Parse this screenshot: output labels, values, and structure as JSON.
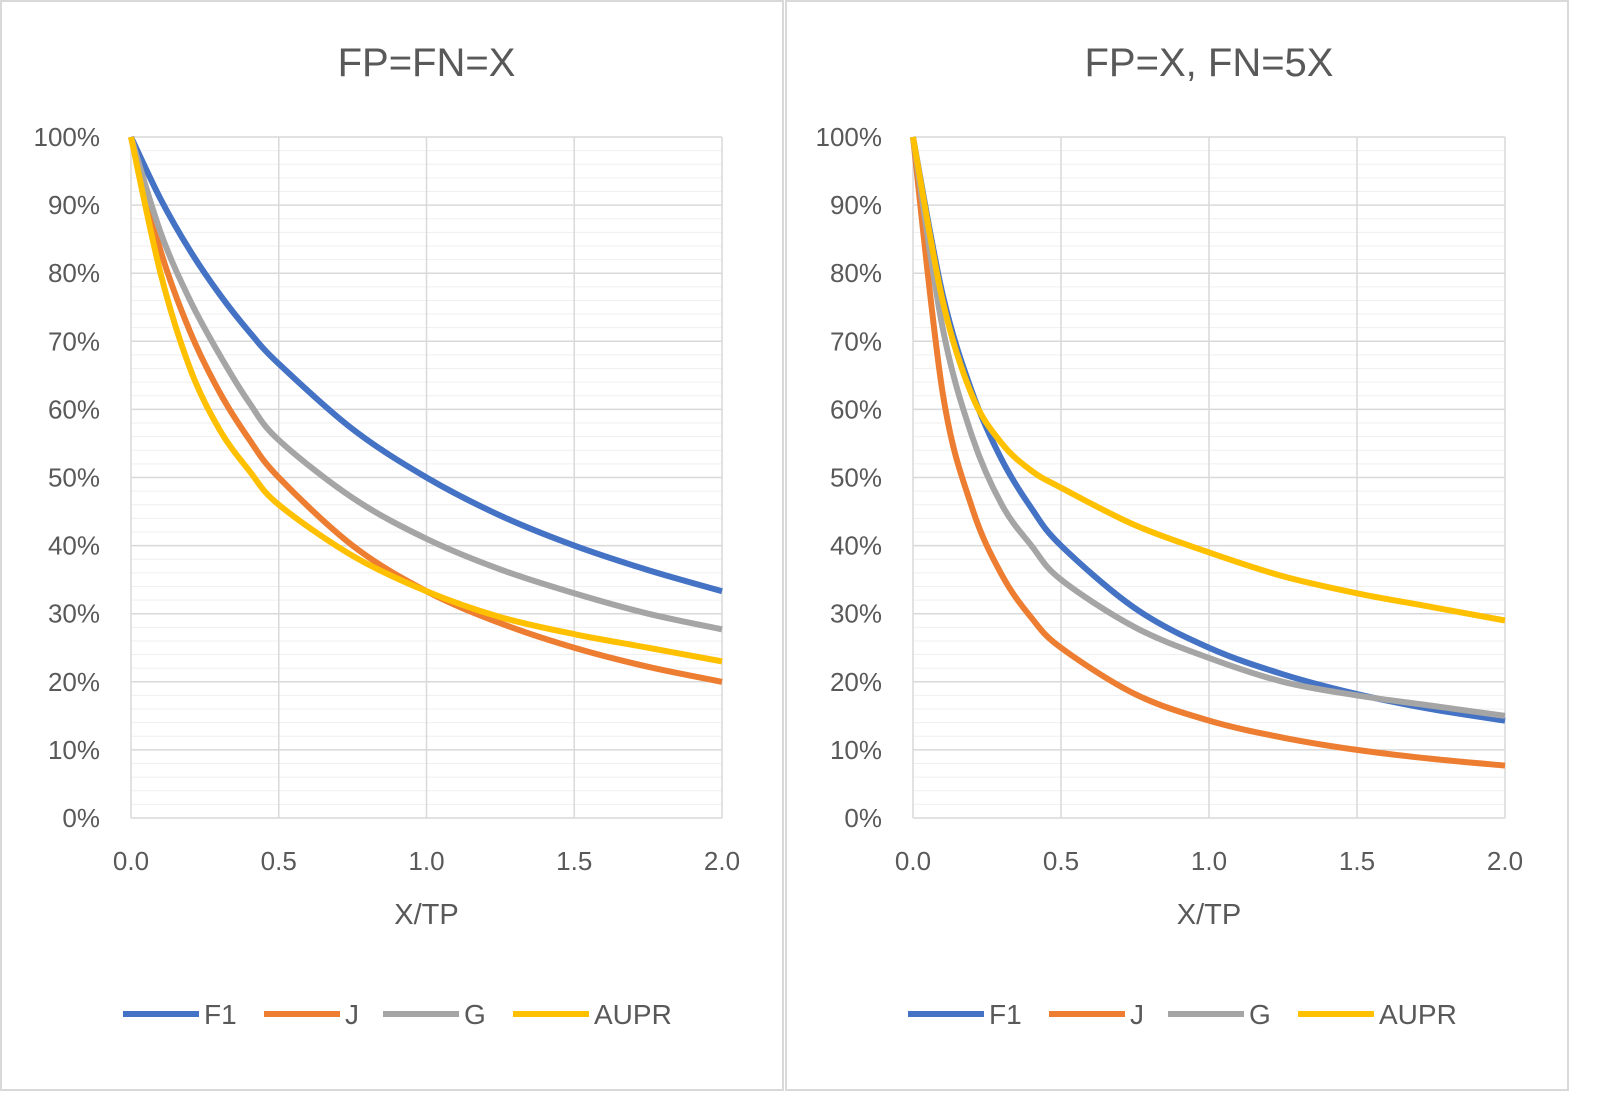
{
  "chart_data": [
    {
      "type": "line",
      "title": "FP=FN=X",
      "xlabel": "X/TP",
      "ylabel": "",
      "xlim": [
        0,
        2
      ],
      "ylim": [
        0,
        1
      ],
      "x_ticks": [
        "0.0",
        "0.5",
        "1.0",
        "1.5",
        "2.0"
      ],
      "y_ticks": [
        "0%",
        "10%",
        "20%",
        "30%",
        "40%",
        "50%",
        "60%",
        "70%",
        "80%",
        "90%",
        "100%"
      ],
      "grid": true,
      "legend": "bottom",
      "x": [
        0,
        0.1,
        0.2,
        0.3,
        0.4,
        0.5,
        0.75,
        1,
        1.25,
        1.5,
        1.75,
        2
      ],
      "series": [
        {
          "name": "F1",
          "color": "#4472C4",
          "values": [
            1,
            0.909,
            0.833,
            0.769,
            0.714,
            0.667,
            0.571,
            0.5,
            0.444,
            0.4,
            0.364,
            0.333
          ]
        },
        {
          "name": "J",
          "color": "#ED7D31",
          "values": [
            1,
            0.833,
            0.714,
            0.625,
            0.556,
            0.5,
            0.4,
            0.333,
            0.286,
            0.25,
            0.222,
            0.2
          ]
        },
        {
          "name": "G",
          "color": "#A5A5A5",
          "values": [
            1,
            0.86,
            0.76,
            0.68,
            0.61,
            0.555,
            0.47,
            0.41,
            0.365,
            0.33,
            0.3,
            0.277
          ]
        },
        {
          "name": "AUPR",
          "color": "#FFC000",
          "values": [
            1,
            0.8,
            0.66,
            0.57,
            0.51,
            0.46,
            0.385,
            0.333,
            0.295,
            0.27,
            0.25,
            0.23
          ]
        }
      ]
    },
    {
      "type": "line",
      "title": "FP=X, FN=5X",
      "xlabel": "X/TP",
      "ylabel": "",
      "xlim": [
        0,
        2
      ],
      "ylim": [
        0,
        1
      ],
      "x_ticks": [
        "0.0",
        "0.5",
        "1.0",
        "1.5",
        "2.0"
      ],
      "y_ticks": [
        "0%",
        "10%",
        "20%",
        "30%",
        "40%",
        "50%",
        "60%",
        "70%",
        "80%",
        "90%",
        "100%"
      ],
      "grid": true,
      "legend": "bottom",
      "x": [
        0,
        0.1,
        0.2,
        0.3,
        0.4,
        0.5,
        0.75,
        1,
        1.25,
        1.5,
        1.75,
        2
      ],
      "series": [
        {
          "name": "F1",
          "color": "#4472C4",
          "values": [
            1,
            0.769,
            0.625,
            0.526,
            0.455,
            0.4,
            0.308,
            0.25,
            0.211,
            0.182,
            0.16,
            0.143
          ]
        },
        {
          "name": "J",
          "color": "#ED7D31",
          "values": [
            1,
            0.625,
            0.455,
            0.357,
            0.294,
            0.25,
            0.182,
            0.143,
            0.118,
            0.1,
            0.087,
            0.077
          ]
        },
        {
          "name": "G",
          "color": "#A5A5A5",
          "values": [
            1,
            0.72,
            0.56,
            0.46,
            0.4,
            0.35,
            0.28,
            0.235,
            0.2,
            0.18,
            0.165,
            0.15
          ]
        },
        {
          "name": "AUPR",
          "color": "#FFC000",
          "values": [
            1,
            0.76,
            0.62,
            0.55,
            0.51,
            0.485,
            0.43,
            0.39,
            0.355,
            0.33,
            0.31,
            0.29
          ]
        }
      ]
    }
  ]
}
